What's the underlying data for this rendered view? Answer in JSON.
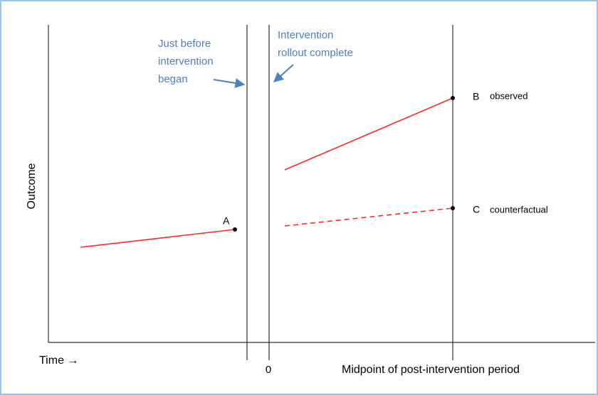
{
  "y_axis_label": "Outcome",
  "x_axis": {
    "label": "Time →",
    "zero_label": "0",
    "midpoint_label": "Midpoint of post-intervention period"
  },
  "annotations": {
    "before": [
      "Just before",
      "intervention",
      "began"
    ],
    "rollout": [
      "Intervention",
      "rollout complete"
    ]
  },
  "points": [
    {
      "label": "A"
    },
    {
      "label": "B",
      "description": "observed"
    },
    {
      "label": "C",
      "description": "counterfactual"
    }
  ]
}
